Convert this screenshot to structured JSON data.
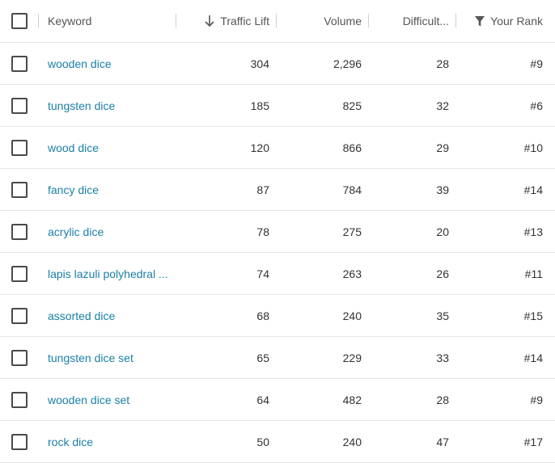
{
  "columns": {
    "keyword": "Keyword",
    "traffic_lift": "Traffic Lift",
    "volume": "Volume",
    "difficulty": "Difficult...",
    "your_rank": "Your Rank"
  },
  "icons": {
    "sort": "arrow-down-icon",
    "filter": "filter-icon"
  },
  "colors": {
    "link": "#1a7fa8",
    "text": "#333333",
    "divider": "#e6e6e6"
  },
  "rows": [
    {
      "keyword": "wooden dice",
      "traffic_lift": "304",
      "volume": "2,296",
      "difficulty": "28",
      "rank": "#9"
    },
    {
      "keyword": "tungsten dice",
      "traffic_lift": "185",
      "volume": "825",
      "difficulty": "32",
      "rank": "#6"
    },
    {
      "keyword": "wood dice",
      "traffic_lift": "120",
      "volume": "866",
      "difficulty": "29",
      "rank": "#10"
    },
    {
      "keyword": "fancy dice",
      "traffic_lift": "87",
      "volume": "784",
      "difficulty": "39",
      "rank": "#14"
    },
    {
      "keyword": "acrylic dice",
      "traffic_lift": "78",
      "volume": "275",
      "difficulty": "20",
      "rank": "#13"
    },
    {
      "keyword": "lapis lazuli polyhedral ...",
      "traffic_lift": "74",
      "volume": "263",
      "difficulty": "26",
      "rank": "#11"
    },
    {
      "keyword": "assorted dice",
      "traffic_lift": "68",
      "volume": "240",
      "difficulty": "35",
      "rank": "#15"
    },
    {
      "keyword": "tungsten dice set",
      "traffic_lift": "65",
      "volume": "229",
      "difficulty": "33",
      "rank": "#14"
    },
    {
      "keyword": "wooden dice set",
      "traffic_lift": "64",
      "volume": "482",
      "difficulty": "28",
      "rank": "#9"
    },
    {
      "keyword": "rock dice",
      "traffic_lift": "50",
      "volume": "240",
      "difficulty": "47",
      "rank": "#17"
    }
  ]
}
